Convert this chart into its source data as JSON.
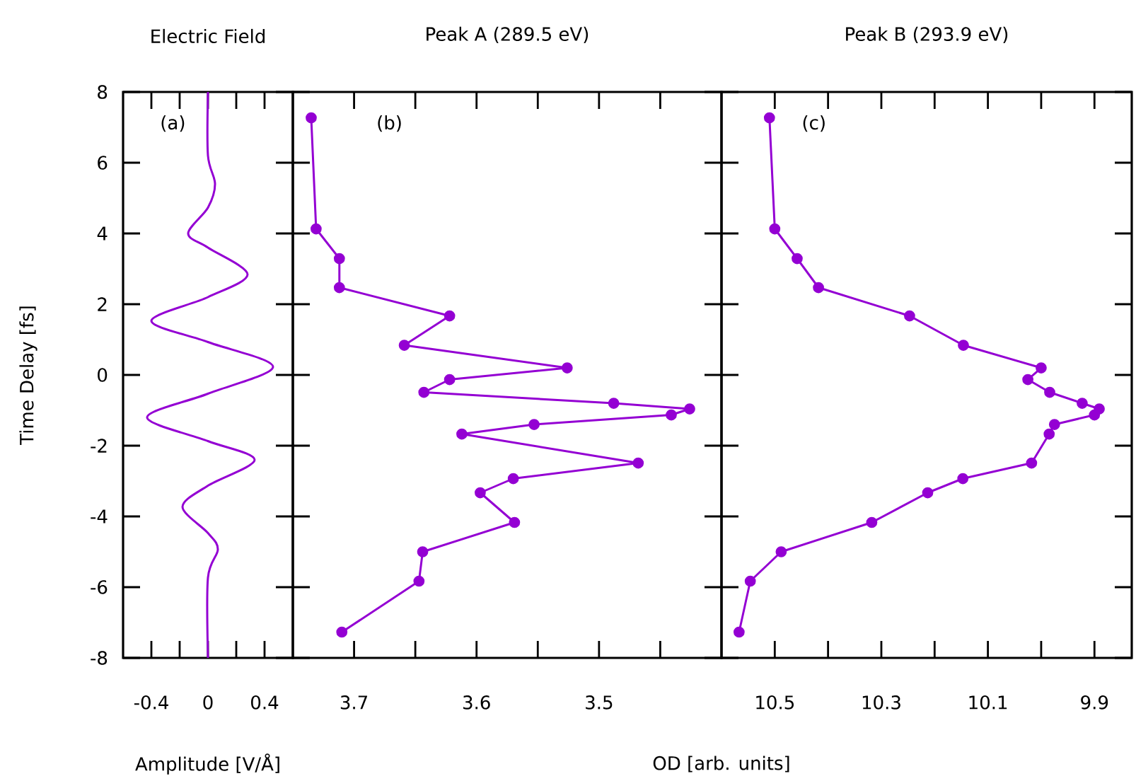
{
  "chart_data": [
    {
      "type": "line",
      "title": "Electric Field",
      "xlabel": "Amplitude [V/Å]",
      "ylabel": "Time Delay [fs]",
      "annotations": [
        "(a)"
      ],
      "xlim": [
        -0.6,
        0.6
      ],
      "xticks": [
        -0.4,
        {
          "value": -0.2,
          "label": null
        },
        0,
        {
          "value": 0.2,
          "label": null
        },
        0.4
      ],
      "ylim": [
        -8,
        8
      ],
      "yticks": [
        -8,
        -6,
        -4,
        -2,
        0,
        2,
        4,
        6,
        8
      ],
      "marker": "none",
      "series": [
        {
          "color": "#9400d3",
          "x": [
            0,
            0,
            0.05,
            0,
            -0.14,
            0,
            0.28,
            0,
            -0.4,
            0,
            0.46,
            0,
            -0.43,
            0,
            0.33,
            0,
            -0.18,
            0,
            0.07,
            0,
            0
          ],
          "values": [
            8,
            6.2,
            5.4,
            4.73,
            4.0,
            3.6,
            2.84,
            2.2,
            1.53,
            0.93,
            0.23,
            -0.53,
            -1.2,
            -1.87,
            -2.4,
            -3.13,
            -3.73,
            -4.47,
            -4.93,
            -5.73,
            -8
          ]
        }
      ]
    },
    {
      "type": "line",
      "title": "Peak A (289.5 eV)",
      "xlabel": "OD [arb. units]",
      "annotations": [
        "(b)"
      ],
      "xlim": [
        3.75,
        3.4
      ],
      "xticks": [
        3.7,
        {
          "value": 3.65,
          "label": null
        },
        3.6,
        {
          "value": 3.55,
          "label": null
        },
        3.5,
        {
          "value": 3.45,
          "label": null
        }
      ],
      "ylim": [
        -8,
        8
      ],
      "yticks": [
        -8,
        -6,
        -4,
        -2,
        0,
        2,
        4,
        6,
        8
      ],
      "tick_labels": "x",
      "marker": "circle",
      "series": [
        {
          "color": "#9400d3",
          "x": [
            3.735,
            3.731,
            3.712,
            3.712,
            3.622,
            3.659,
            3.526,
            3.622,
            3.643,
            3.488,
            3.426,
            3.441,
            3.553,
            3.612,
            3.468,
            3.57,
            3.597,
            3.569,
            3.644,
            3.647,
            3.71
          ],
          "values": [
            7.27,
            4.13,
            3.29,
            2.47,
            1.67,
            0.84,
            0.2,
            -0.13,
            -0.49,
            -0.8,
            -0.96,
            -1.13,
            -1.4,
            -1.67,
            -2.49,
            -2.93,
            -3.33,
            -4.17,
            -5.0,
            -5.83,
            -7.27
          ]
        }
      ]
    },
    {
      "type": "line",
      "title": "Peak B (293.9 eV)",
      "annotations": [
        "(c)"
      ],
      "xlim": [
        10.6,
        9.83
      ],
      "xticks": [
        10.5,
        {
          "value": 10.4,
          "label": null
        },
        10.3,
        {
          "value": 10.2,
          "label": null
        },
        10.1,
        {
          "value": 10.0,
          "label": null
        },
        9.9
      ],
      "ylim": [
        -8,
        8
      ],
      "yticks": [
        -8,
        -6,
        -4,
        -2,
        0,
        2,
        4,
        6,
        8
      ],
      "tick_labels": "x",
      "marker": "circle",
      "series": [
        {
          "color": "#9400d3",
          "x": [
            10.51,
            10.5,
            10.458,
            10.418,
            10.247,
            10.146,
            10.0,
            10.025,
            9.984,
            9.923,
            9.891,
            9.9,
            9.975,
            9.985,
            10.018,
            10.147,
            10.213,
            10.318,
            10.488,
            10.546,
            10.567
          ],
          "values": [
            7.27,
            4.13,
            3.29,
            2.47,
            1.67,
            0.84,
            0.2,
            -0.13,
            -0.49,
            -0.8,
            -0.96,
            -1.13,
            -1.4,
            -1.67,
            -2.49,
            -2.93,
            -3.33,
            -4.17,
            -5.0,
            -5.83,
            -7.27
          ]
        }
      ]
    }
  ]
}
